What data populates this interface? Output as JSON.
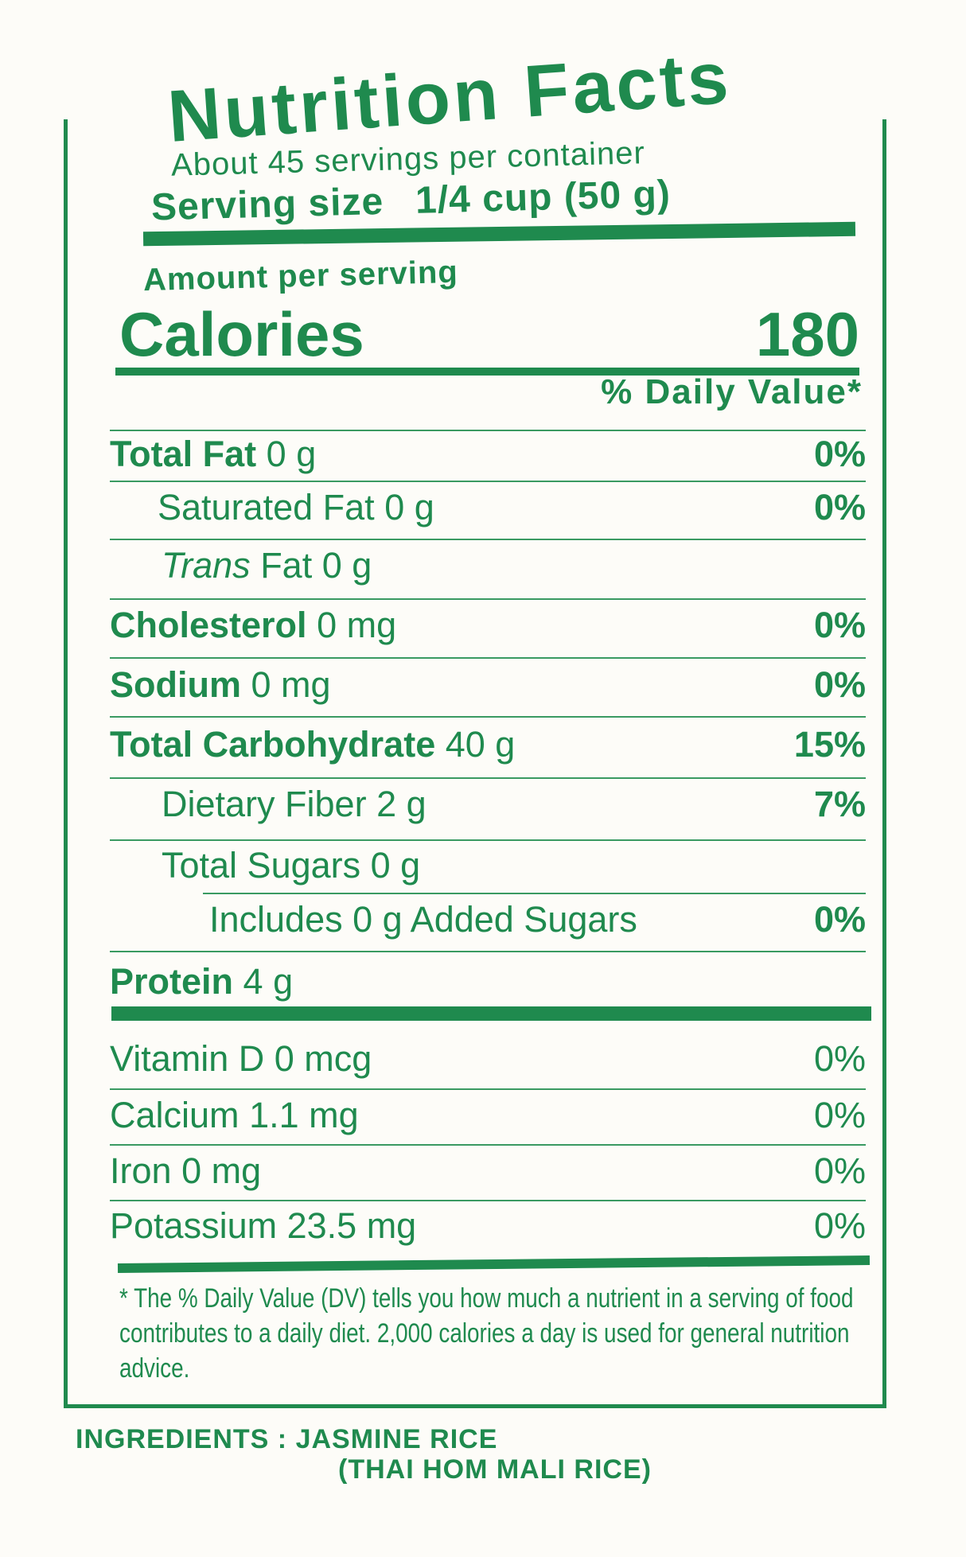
{
  "title": "Nutrition Facts",
  "servings_per_container": "About 45 servings per container",
  "serving_size_label": "Serving size",
  "serving_size_value": "1/4 cup (50 g)",
  "amount_per_serving": "Amount per serving",
  "calories_label": "Calories",
  "calories_value": "180",
  "daily_value_header": "% Daily Value*",
  "nutrients": [
    {
      "name": "Total Fat",
      "amount": "0 g",
      "dv": "0%"
    },
    {
      "name": "Saturated Fat",
      "amount": "0 g",
      "dv": "0%"
    },
    {
      "name": "Trans",
      "name_rest": " Fat",
      "amount": "0 g",
      "dv": ""
    },
    {
      "name": "Cholesterol",
      "amount": "0 mg",
      "dv": "0%"
    },
    {
      "name": "Sodium",
      "amount": "0 mg",
      "dv": "0%"
    },
    {
      "name": "Total Carbohydrate",
      "amount": "40 g",
      "dv": "15%"
    },
    {
      "name": "Dietary Fiber",
      "amount": "2 g",
      "dv": "7%"
    },
    {
      "name": "Total Sugars",
      "amount": "0 g",
      "dv": ""
    },
    {
      "name": "Includes 0 g Added Sugars",
      "amount": "",
      "dv": "0%"
    },
    {
      "name": "Protein",
      "amount": "4 g",
      "dv": ""
    }
  ],
  "vitamins": [
    {
      "name": "Vitamin D",
      "amount": "0 mcg",
      "dv": "0%"
    },
    {
      "name": "Calcium",
      "amount": "1.1 mg",
      "dv": "0%"
    },
    {
      "name": "Iron",
      "amount": "0 mg",
      "dv": "0%"
    },
    {
      "name": "Potassium",
      "amount": "23.5 mg",
      "dv": "0%"
    }
  ],
  "footnote": "* The % Daily Value (DV) tells you how much a nutrient in a serving of food contributes to a daily diet. 2,000 calories a day is used for general nutrition advice.",
  "ingredients_line1": "INGREDIENTS : JASMINE RICE",
  "ingredients_line2": "(THAI HOM MALI RICE)",
  "colors": {
    "ink": "#1f8a4e",
    "background": "#fdfcf8"
  }
}
